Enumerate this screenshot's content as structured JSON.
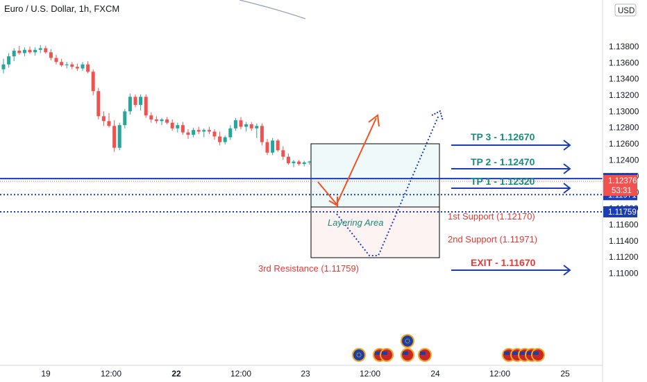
{
  "header": {
    "title": "Euro / U.S. Dollar, 1h, FXCM",
    "currency": "USD"
  },
  "chart_data": {
    "type": "candlestick",
    "title": "Euro / U.S. Dollar, 1h, FXCM",
    "ylim": [
      1.1085,
      1.1382
    ],
    "y_ticks": [
      1.138,
      1.136,
      1.134,
      1.132,
      1.13,
      1.128,
      1.126,
      1.124,
      1.122,
      1.12,
      1.118,
      1.116,
      1.114,
      1.112,
      1.11
    ],
    "y_tick_labels": [
      "1.13800",
      "1.13600",
      "1.13400",
      "1.13200",
      "1.13000",
      "1.12800",
      "1.12600",
      "1.12400",
      "1.12200",
      "1.12000",
      "1.11800",
      "1.11600",
      "1.11400",
      "1.11200",
      "1.11000"
    ],
    "x_tick_labels": [
      "19",
      "12:00",
      "22",
      "12:00",
      "23",
      "12:00",
      "24",
      "12:00",
      "25"
    ],
    "candles": [
      [
        1.1352,
        1.1365,
        1.1347,
        1.1358
      ],
      [
        1.1358,
        1.1372,
        1.1354,
        1.1368
      ],
      [
        1.1368,
        1.1378,
        1.1362,
        1.1375
      ],
      [
        1.1375,
        1.1381,
        1.137,
        1.1372
      ],
      [
        1.1372,
        1.1379,
        1.1368,
        1.1376
      ],
      [
        1.1376,
        1.138,
        1.1371,
        1.1373
      ],
      [
        1.1373,
        1.1379,
        1.1369,
        1.1376
      ],
      [
        1.1376,
        1.1382,
        1.1372,
        1.1378
      ],
      [
        1.1378,
        1.1381,
        1.1371,
        1.1373
      ],
      [
        1.1373,
        1.1377,
        1.1363,
        1.1366
      ],
      [
        1.1366,
        1.137,
        1.1358,
        1.1361
      ],
      [
        1.1361,
        1.1365,
        1.1355,
        1.1357
      ],
      [
        1.1357,
        1.1361,
        1.1353,
        1.1358
      ],
      [
        1.1358,
        1.1361,
        1.1352,
        1.1355
      ],
      [
        1.1355,
        1.1359,
        1.135,
        1.1353
      ],
      [
        1.1353,
        1.1361,
        1.135,
        1.1358
      ],
      [
        1.1358,
        1.1362,
        1.1347,
        1.1349
      ],
      [
        1.1349,
        1.1352,
        1.132,
        1.1325
      ],
      [
        1.1325,
        1.1329,
        1.129,
        1.1294
      ],
      [
        1.1294,
        1.13,
        1.1282,
        1.1288
      ],
      [
        1.1288,
        1.1298,
        1.128,
        1.1282
      ],
      [
        1.1282,
        1.1289,
        1.125,
        1.1255
      ],
      [
        1.1255,
        1.1286,
        1.1252,
        1.1283
      ],
      [
        1.1283,
        1.1303,
        1.1279,
        1.13
      ],
      [
        1.13,
        1.1322,
        1.1296,
        1.1318
      ],
      [
        1.1318,
        1.1321,
        1.1305,
        1.1308
      ],
      [
        1.1308,
        1.1321,
        1.1301,
        1.1318
      ],
      [
        1.1318,
        1.1321,
        1.1292,
        1.1295
      ],
      [
        1.1295,
        1.1299,
        1.1286,
        1.129
      ],
      [
        1.129,
        1.1294,
        1.1285,
        1.1288
      ],
      [
        1.1288,
        1.1292,
        1.1283,
        1.129
      ],
      [
        1.129,
        1.1293,
        1.1284,
        1.1286
      ],
      [
        1.1286,
        1.129,
        1.1276,
        1.1279
      ],
      [
        1.1279,
        1.1286,
        1.1274,
        1.1283
      ],
      [
        1.1283,
        1.1287,
        1.1271,
        1.1274
      ],
      [
        1.1274,
        1.1278,
        1.1266,
        1.1271
      ],
      [
        1.1271,
        1.128,
        1.1268,
        1.1277
      ],
      [
        1.1277,
        1.1281,
        1.1272,
        1.1275
      ],
      [
        1.1275,
        1.1279,
        1.1268,
        1.1277
      ],
      [
        1.1277,
        1.1281,
        1.1272,
        1.1275
      ],
      [
        1.1275,
        1.1278,
        1.1265,
        1.1269
      ],
      [
        1.1269,
        1.1275,
        1.1258,
        1.1262
      ],
      [
        1.1262,
        1.127,
        1.1259,
        1.1268
      ],
      [
        1.1268,
        1.1283,
        1.1265,
        1.1279
      ],
      [
        1.1279,
        1.1292,
        1.1276,
        1.1289
      ],
      [
        1.1289,
        1.1293,
        1.1278,
        1.1281
      ],
      [
        1.1281,
        1.1287,
        1.1275,
        1.1284
      ],
      [
        1.1284,
        1.1287,
        1.1276,
        1.1279
      ],
      [
        1.1279,
        1.1285,
        1.1267,
        1.1282
      ],
      [
        1.1282,
        1.1285,
        1.1258,
        1.1262
      ],
      [
        1.1262,
        1.1266,
        1.1246,
        1.1249
      ],
      [
        1.1249,
        1.1267,
        1.1246,
        1.1264
      ],
      [
        1.1264,
        1.1266,
        1.125,
        1.1252
      ],
      [
        1.1252,
        1.1257,
        1.124,
        1.1244
      ],
      [
        1.1244,
        1.1248,
        1.1234,
        1.1236
      ],
      [
        1.1236,
        1.124,
        1.1231,
        1.1238
      ],
      [
        1.1238,
        1.124,
        1.1233,
        1.1235
      ],
      [
        1.1235,
        1.1239,
        1.1232,
        1.1237
      ],
      [
        1.1237,
        1.1239,
        1.1234,
        1.1238
      ]
    ],
    "current_price": {
      "value": 1.12376,
      "label": "1.12376",
      "countdown": "53:31"
    },
    "levels": [
      {
        "value": 1.1217,
        "label": "1.12170",
        "style": "solid",
        "color": "#1a3cb5"
      },
      {
        "value": 1.11971,
        "label": "1.11971",
        "style": "dotted",
        "color": "#1a3cb5"
      },
      {
        "value": 1.11759,
        "label": "1.11759",
        "style": "dotted",
        "color": "#1a3cb5"
      }
    ],
    "annotations": {
      "tp3": "TP 3 - 1.12670",
      "tp2": "TP 2 - 1.12470",
      "tp1": "TP 1 - 1.12320",
      "exit": "EXIT - 1.11670",
      "support1": "1st Support (1.12170)",
      "support2": "2nd Support (1.11971)",
      "resistance3": "3rd Resistance (1.11759)",
      "layering": "Layering Area"
    },
    "colors": {
      "up": "#26a69a",
      "down": "#ef5350",
      "tp": "#1a8a7a",
      "exit": "#e53935",
      "arrow": "#1a3cb5",
      "line": "#1a3cb5"
    }
  }
}
